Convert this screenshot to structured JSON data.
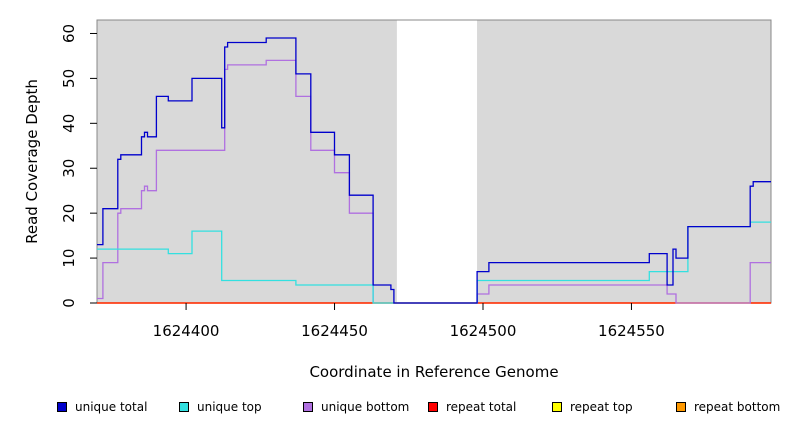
{
  "chart_data": {
    "type": "line",
    "step": true,
    "title": "",
    "xlabel": "Coordinate in Reference Genome",
    "ylabel": "Read Coverage Depth",
    "xlim": [
      1624370,
      1624597
    ],
    "ylim": [
      0,
      63
    ],
    "xticks": [
      1624400,
      1624450,
      1624500,
      1624550
    ],
    "xtick_labels": [
      "1624400",
      "1624450",
      "1624500",
      "1624550"
    ],
    "yticks": [
      0,
      10,
      20,
      30,
      40,
      50,
      60
    ],
    "ytick_labels": [
      "0",
      "10",
      "20",
      "30",
      "40",
      "50",
      "60"
    ],
    "background_color": "#d9d9d9",
    "shaded_regions": [
      [
        1624370,
        1624471
      ],
      [
        1624498,
        1624597
      ]
    ],
    "legend_position": "bottom",
    "series": [
      {
        "name": "unique total",
        "color": "#0000cc",
        "x": [
          1624370,
          1624372,
          1624377,
          1624378,
          1624385,
          1624386,
          1624387,
          1624390,
          1624394,
          1624402,
          1624412,
          1624413,
          1624414,
          1624418,
          1624427,
          1624437,
          1624442,
          1624450,
          1624455,
          1624463,
          1624469,
          1624470,
          1624472,
          1624498,
          1624502,
          1624506,
          1624530,
          1624556,
          1624562,
          1624564,
          1624565,
          1624569,
          1624582,
          1624590,
          1624591,
          1624597
        ],
        "y": [
          13,
          21,
          32,
          33,
          37,
          38,
          37,
          46,
          45,
          50,
          39,
          57,
          58,
          58,
          59,
          51,
          38,
          33,
          24,
          4,
          3,
          0,
          0,
          7,
          9,
          9,
          9,
          11,
          4,
          12,
          10,
          17,
          17,
          26,
          27,
          27
        ]
      },
      {
        "name": "unique top",
        "color": "#33e0e0",
        "x": [
          1624370,
          1624378,
          1624390,
          1624394,
          1624402,
          1624412,
          1624413,
          1624414,
          1624418,
          1624437,
          1624442,
          1624450,
          1624455,
          1624463,
          1624469,
          1624470,
          1624472,
          1624498,
          1624502,
          1624556,
          1624562,
          1624569,
          1624582,
          1624590,
          1624597
        ],
        "y": [
          12,
          12,
          12,
          11,
          16,
          5,
          5,
          5,
          5,
          4,
          4,
          4,
          4,
          0,
          0,
          0,
          0,
          5,
          5,
          7,
          7,
          17,
          17,
          18,
          18
        ]
      },
      {
        "name": "unique bottom",
        "color": "#b070e0",
        "x": [
          1624370,
          1624372,
          1624377,
          1624378,
          1624385,
          1624386,
          1624387,
          1624390,
          1624394,
          1624402,
          1624412,
          1624413,
          1624414,
          1624418,
          1624427,
          1624437,
          1624442,
          1624450,
          1624455,
          1624463,
          1624469,
          1624470,
          1624472,
          1624498,
          1624502,
          1624506,
          1624556,
          1624562,
          1624565,
          1624569,
          1624582,
          1624590,
          1624597
        ],
        "y": [
          1,
          9,
          20,
          21,
          25,
          26,
          25,
          34,
          34,
          34,
          34,
          52,
          53,
          53,
          54,
          46,
          34,
          29,
          20,
          0,
          0,
          0,
          0,
          2,
          4,
          4,
          4,
          2,
          0,
          0,
          0,
          9,
          9
        ]
      },
      {
        "name": "repeat total",
        "color": "#ff0000",
        "x": [
          1624370,
          1624597
        ],
        "y": [
          0,
          0
        ]
      },
      {
        "name": "repeat top",
        "color": "#ffff00",
        "x": [
          1624370,
          1624597
        ],
        "y": [
          0,
          0
        ]
      },
      {
        "name": "repeat bottom",
        "color": "#ff9900",
        "x": [
          1624370,
          1624597
        ],
        "y": [
          0,
          0
        ]
      }
    ]
  }
}
